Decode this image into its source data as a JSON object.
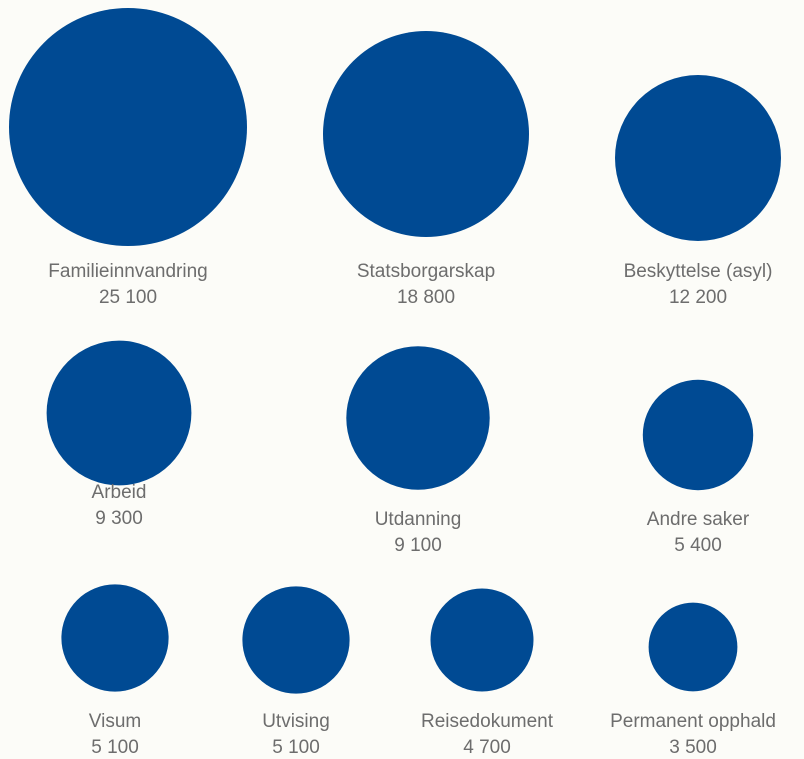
{
  "chart_data": {
    "type": "bubble",
    "title": "",
    "unit": "",
    "colors": {
      "bubble": "#004a93",
      "text": "#6d6d6d",
      "background": "#fcfcf8"
    },
    "items": [
      {
        "label": "Familieinnvandring",
        "value": 25100,
        "display": "25 100"
      },
      {
        "label": "Statsborgarskap",
        "value": 18800,
        "display": "18 800"
      },
      {
        "label": "Beskyttelse (asyl)",
        "value": 12200,
        "display": "12 200"
      },
      {
        "label": "Arbeid",
        "value": 9300,
        "display": "9 300"
      },
      {
        "label": "Utdanning",
        "value": 9100,
        "display": "9 100"
      },
      {
        "label": "Andre saker",
        "value": 5400,
        "display": "5 400"
      },
      {
        "label": "Visum",
        "value": 5100,
        "display": "5 100"
      },
      {
        "label": "Utvising",
        "value": 5100,
        "display": "5 100"
      },
      {
        "label": "Reisedokument",
        "value": 4700,
        "display": "4 700"
      },
      {
        "label": "Permanent opphald",
        "value": 3500,
        "display": "3 500"
      }
    ]
  }
}
